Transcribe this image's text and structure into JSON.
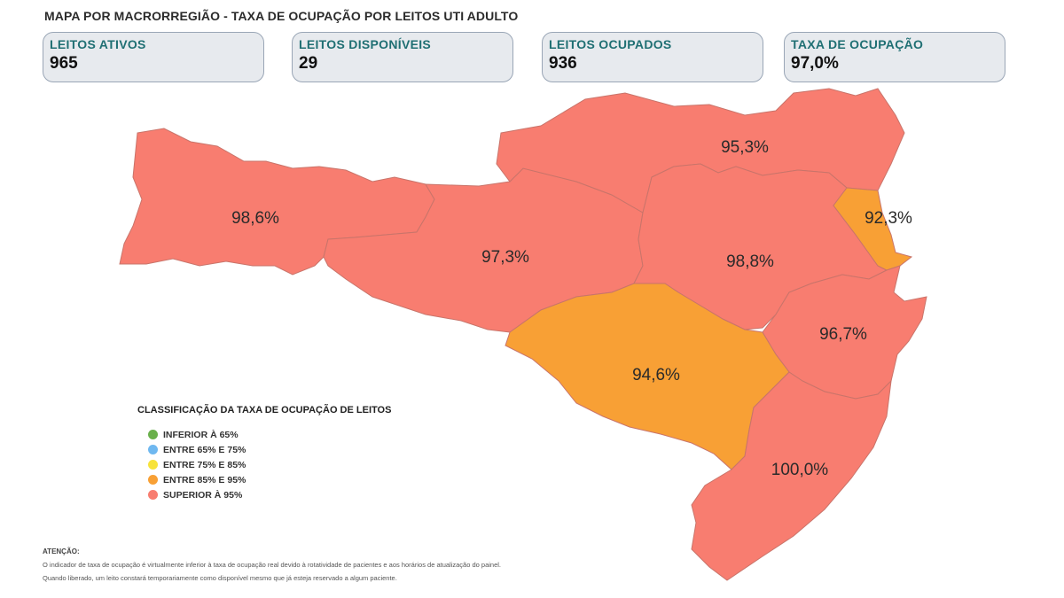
{
  "title": "MAPA POR MACRORREGIÃO - TAXA DE OCUPAÇÃO POR LEITOS UTI ADULTO",
  "kpis": [
    {
      "label": "LEITOS ATIVOS",
      "value": "965"
    },
    {
      "label": "LEITOS DISPONÍVEIS",
      "value": "29"
    },
    {
      "label": "LEITOS OCUPADOS",
      "value": "936"
    },
    {
      "label": "TAXA DE OCUPAÇÃO",
      "value": "97,0%"
    }
  ],
  "regions": [
    {
      "value": "98,6%",
      "category": "superior",
      "color": "#f87d70"
    },
    {
      "value": "97,3%",
      "category": "superior",
      "color": "#f87d70"
    },
    {
      "value": "95,3%",
      "category": "superior",
      "color": "#f87d70"
    },
    {
      "value": "98,8%",
      "category": "superior",
      "color": "#f87d70"
    },
    {
      "value": "92,3%",
      "category": "entre85_95",
      "color": "#f8a035"
    },
    {
      "value": "96,7%",
      "category": "superior",
      "color": "#f87d70"
    },
    {
      "value": "94,6%",
      "category": "entre85_95",
      "color": "#f8a035"
    },
    {
      "value": "100,0%",
      "category": "superior",
      "color": "#f87d70"
    }
  ],
  "legend": {
    "title": "CLASSIFICAÇÃO DA TAXA DE OCUPAÇÃO DE LEITOS",
    "items": [
      {
        "label": "INFERIOR À 65%",
        "color": "#6ab04c"
      },
      {
        "label": "ENTRE 65% E 75%",
        "color": "#6fb8f0"
      },
      {
        "label": "ENTRE 75% E 85%",
        "color": "#f7e33a"
      },
      {
        "label": "ENTRE 85% E 95%",
        "color": "#f8a035"
      },
      {
        "label": "SUPERIOR À 95%",
        "color": "#f87d70"
      }
    ]
  },
  "notice": {
    "title": "ATENÇÃO:",
    "line1": "O indicador de taxa de ocupação é virtualmente inferior à taxa de ocupação real devido à rotatividade de pacientes e aos horários de atualização do painel.",
    "line2": "Quando liberado, um leito constará temporariamente como disponível mesmo que já esteja reservado a algum paciente."
  }
}
